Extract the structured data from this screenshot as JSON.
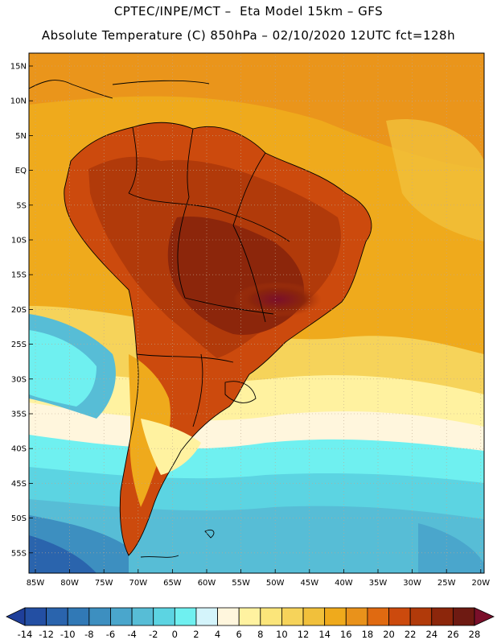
{
  "header": {
    "line1": "CPTEC/INPE/MCT –  Eta Model 15km – GFS",
    "line2": "Absolute Temperature (C) 850hPa – 02/10/2020 12UTC fct=128h"
  },
  "map": {
    "lat_ticks": [
      "15N",
      "10N",
      "5N",
      "EQ",
      "5S",
      "10S",
      "15S",
      "20S",
      "25S",
      "30S",
      "35S",
      "40S",
      "45S",
      "50S",
      "55S"
    ],
    "lon_ticks": [
      "85W",
      "80W",
      "75W",
      "70W",
      "65W",
      "60W",
      "55W",
      "50W",
      "45W",
      "40W",
      "35W",
      "30W",
      "25W",
      "20W"
    ],
    "grid": true
  },
  "colorbar": {
    "labels": [
      "-14",
      "-12",
      "-10",
      "-8",
      "-6",
      "-4",
      "-2",
      "0",
      "2",
      "4",
      "6",
      "8",
      "10",
      "12",
      "14",
      "16",
      "18",
      "20",
      "22",
      "24",
      "26",
      "28"
    ],
    "colors": [
      "#1f3f9a",
      "#234fa3",
      "#2a64ad",
      "#3179b6",
      "#3d8fc0",
      "#4aa6cc",
      "#57bdd6",
      "#5cd4e2",
      "#6ff0f0",
      "#d4f4fb",
      "#fff6dd",
      "#fff2a0",
      "#fbe57a",
      "#f6d35a",
      "#f1c03b",
      "#efaa1c",
      "#e9921b",
      "#e06a11",
      "#cc4a0d",
      "#b13a0a",
      "#8c260b",
      "#6e1a12",
      "#7a0f2a"
    ]
  },
  "palette": {
    "ocean_warm": "#efaa1c",
    "ocean_mid": "#f1c03b",
    "land_hot": "#cc4a0d",
    "land_hotter": "#8c260b",
    "land_hottest": "#6e1a12",
    "cool_ocean": "#57bdd6",
    "cold_ocean": "#3d8fc0"
  }
}
